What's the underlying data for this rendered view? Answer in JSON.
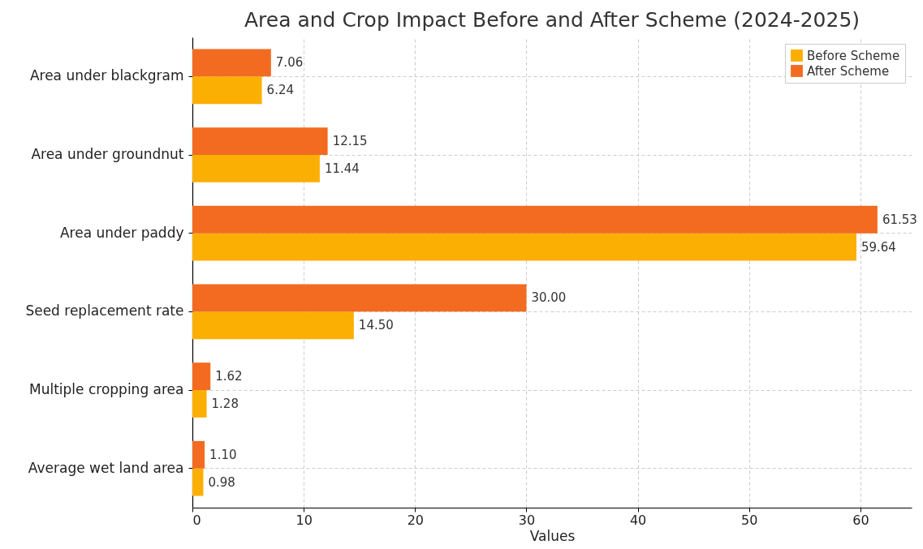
{
  "chart_data": {
    "type": "bar",
    "orientation": "horizontal",
    "title": "Area and Crop Impact Before and After Scheme (2024-2025)",
    "xlabel": "Values",
    "categories": [
      "Area under blackgram",
      "Area under groundnut",
      "Area under paddy",
      "Seed replacement rate",
      "Multiple cropping area",
      "Average wet land area"
    ],
    "series": [
      {
        "name": "Before Scheme",
        "color": "#fcaf03",
        "values": [
          6.24,
          11.44,
          59.64,
          14.5,
          1.28,
          0.98
        ],
        "value_labels": [
          "6.24",
          "11.44",
          "59.64",
          "14.50",
          "1.28",
          "0.98"
        ]
      },
      {
        "name": "After Scheme",
        "color": "#f26b21",
        "values": [
          7.06,
          12.15,
          61.53,
          30,
          1.62,
          1.1
        ],
        "value_labels": [
          "7.06",
          "12.15",
          "61.53",
          "30.00",
          "1.62",
          "1.10"
        ]
      }
    ],
    "xlim": [
      0,
      64.6
    ],
    "xticks": [
      0,
      10,
      20,
      30,
      40,
      50,
      60
    ],
    "grid": true,
    "legend": "top right"
  }
}
